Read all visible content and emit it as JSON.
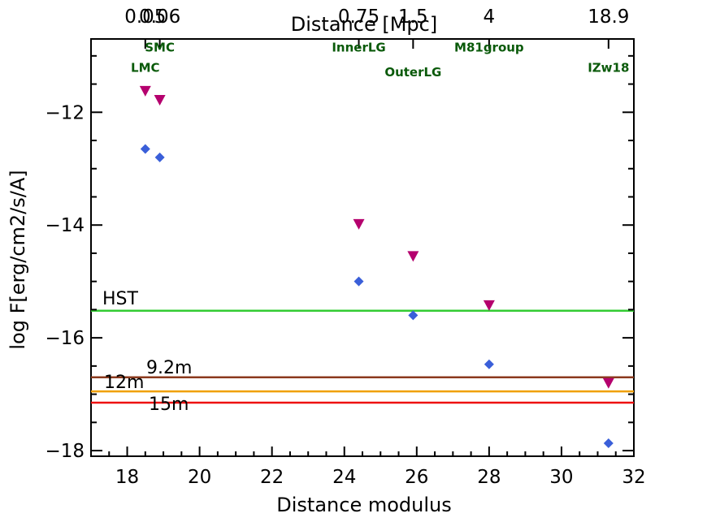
{
  "chart_data": {
    "type": "scatter",
    "xlabel": "Distance modulus",
    "ylabel": "log F[erg/cm2/s/A]",
    "top_xlabel": "Distance [Mpc]",
    "xlim": [
      17,
      32
    ],
    "ylim": [
      -18.1,
      -10.7
    ],
    "x_ticks": [
      18,
      20,
      22,
      24,
      26,
      28,
      30,
      32
    ],
    "y_ticks": [
      -18,
      -16,
      -14,
      -12
    ],
    "y_tick_labels": [
      "−18",
      "−16",
      "−14",
      "−12"
    ],
    "top_ticks": [
      {
        "x": 18.5,
        "label": "0.05"
      },
      {
        "x": 18.9,
        "label": "0.06"
      },
      {
        "x": 24.4,
        "label": "0.75"
      },
      {
        "x": 25.9,
        "label": "1.5"
      },
      {
        "x": 28.0,
        "label": "4"
      },
      {
        "x": 31.3,
        "label": "18.9"
      }
    ],
    "galaxies": [
      {
        "name": "LMC",
        "x": 18.5,
        "label_y": -11.28
      },
      {
        "name": "SMC",
        "x": 18.9,
        "label_y": -10.92
      },
      {
        "name": "InnerLG",
        "x": 24.4,
        "label_y": -10.92
      },
      {
        "name": "OuterLG",
        "x": 25.9,
        "label_y": -11.36
      },
      {
        "name": "M81group",
        "x": 28.0,
        "label_y": -10.92
      },
      {
        "name": "IZw18",
        "x": 31.3,
        "label_y": -11.28
      }
    ],
    "series": [
      {
        "name": "triangles",
        "marker": "triangle-down",
        "color": "#b5006e",
        "x": [
          18.5,
          18.9,
          24.4,
          25.9,
          28.0,
          31.3
        ],
        "y": [
          -11.62,
          -11.78,
          -13.98,
          -14.55,
          -15.42,
          -16.8
        ]
      },
      {
        "name": "diamonds",
        "marker": "diamond",
        "color": "#3a5fd9",
        "x": [
          18.5,
          18.9,
          24.4,
          25.9,
          28.0,
          31.3
        ],
        "y": [
          -12.65,
          -12.8,
          -15.0,
          -15.6,
          -16.47,
          -17.87
        ]
      }
    ],
    "hlines": [
      {
        "name": "HST",
        "y": -15.52,
        "color": "#33cc33"
      },
      {
        "name": "9.2m",
        "y": -16.7,
        "color": "#8b3a1e"
      },
      {
        "name": "12m",
        "y": -16.95,
        "color": "#f0a000"
      },
      {
        "name": "15m",
        "y": -17.15,
        "color": "#ee1111"
      }
    ],
    "colors": {
      "label_green": "#0a5a0a",
      "axis": "#000000"
    }
  }
}
